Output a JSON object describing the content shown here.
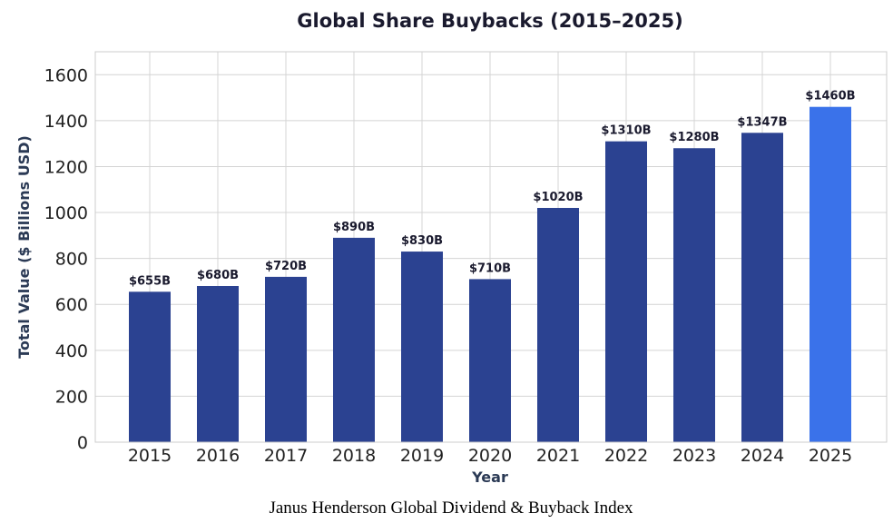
{
  "chart_data": {
    "type": "bar",
    "title": "Global Share Buybacks (2015–2025)",
    "xlabel": "Year",
    "ylabel": "Total Value ($ Billions USD)",
    "categories": [
      "2015",
      "2016",
      "2017",
      "2018",
      "2019",
      "2020",
      "2021",
      "2022",
      "2023",
      "2024",
      "2025"
    ],
    "values": [
      655,
      680,
      720,
      890,
      830,
      710,
      1020,
      1310,
      1280,
      1347,
      1460
    ],
    "data_labels": [
      "$655B",
      "$680B",
      "$720B",
      "$890B",
      "$830B",
      "$710B",
      "$1020B",
      "$1310B",
      "$1280B",
      "$1347B",
      "$1460B"
    ],
    "ylim": [
      0,
      1700
    ],
    "yticks": [
      0,
      200,
      400,
      600,
      800,
      1000,
      1200,
      1400,
      1600
    ],
    "grid": true,
    "legend": "none",
    "colors": {
      "bar": "#2b4291",
      "highlight": "#3a72ea"
    },
    "highlight_index": 10
  },
  "footer": {
    "source": "Janus Henderson Global Dividend & Buyback Index"
  }
}
